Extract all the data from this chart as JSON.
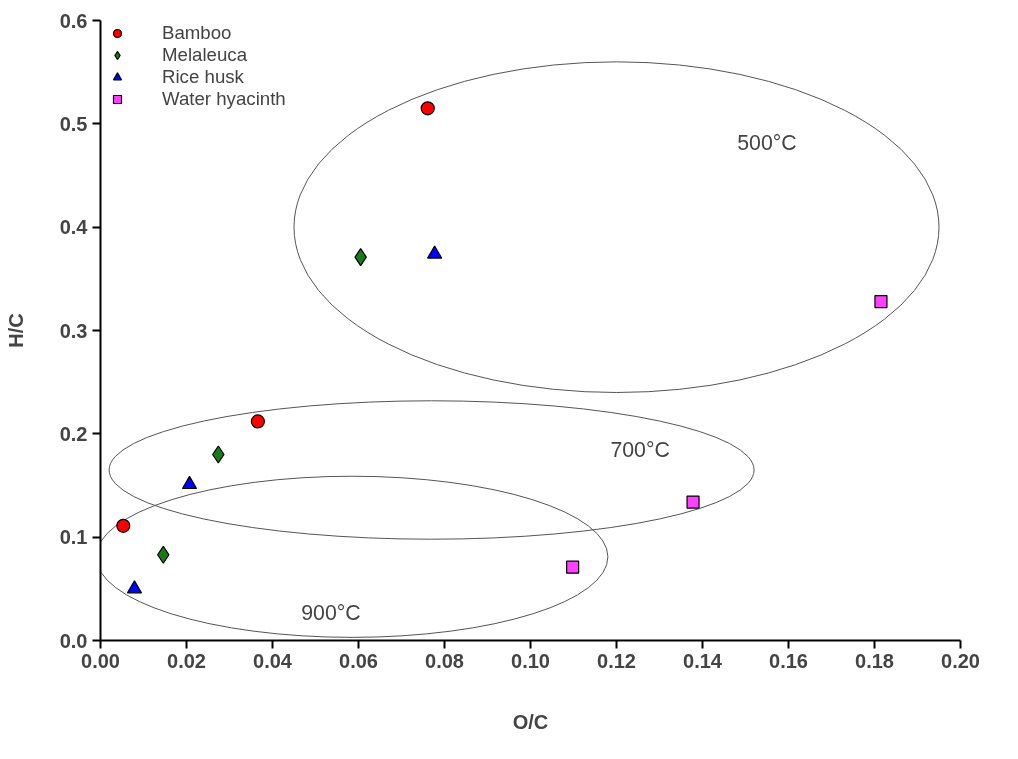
{
  "chart_data": {
    "type": "scatter",
    "xlabel": "O/C",
    "ylabel": "H/C",
    "xlim": [
      0,
      0.2
    ],
    "ylim": [
      0,
      0.6
    ],
    "xticks": [
      {
        "value": 0,
        "label": "0.00"
      },
      {
        "value": 0.02,
        "label": "0.02"
      },
      {
        "value": 0.04,
        "label": "0.04"
      },
      {
        "value": 0.06,
        "label": "0.06"
      },
      {
        "value": 0.08,
        "label": "0.08"
      },
      {
        "value": 0.1,
        "label": "0.10"
      },
      {
        "value": 0.12,
        "label": "0.12"
      },
      {
        "value": 0.14,
        "label": "0.14"
      },
      {
        "value": 0.16,
        "label": "0.16"
      },
      {
        "value": 0.18,
        "label": "0.18"
      },
      {
        "value": 0.2,
        "label": "0.20"
      }
    ],
    "yticks": [
      {
        "value": 0,
        "label": "0.0"
      },
      {
        "value": 0.1,
        "label": "0.1"
      },
      {
        "value": 0.2,
        "label": "0.2"
      },
      {
        "value": 0.3,
        "label": "0.3"
      },
      {
        "value": 0.4,
        "label": "0.4"
      },
      {
        "value": 0.5,
        "label": "0.5"
      },
      {
        "value": 0.6,
        "label": "0.6"
      }
    ],
    "grid": false,
    "legend": "top left",
    "series": [
      {
        "name": "Bamboo",
        "color": "#ff0000",
        "marker": "circle",
        "x": [
          0.0053,
          0.0366,
          0.0761
        ],
        "values": [
          0.111,
          0.212,
          0.515
        ]
      },
      {
        "name": "Melaleuca",
        "color": "#1a7a1a",
        "marker": "diamond",
        "x": [
          0.0146,
          0.0274,
          0.0605
        ],
        "values": [
          0.083,
          0.18,
          0.371
        ]
      },
      {
        "name": "Rice husk",
        "color": "#0000ff",
        "marker": "triangle",
        "x": [
          0.0079,
          0.0207,
          0.0777
        ],
        "values": [
          0.05,
          0.151,
          0.374
        ]
      },
      {
        "name": "Water hyacinth",
        "color": "#ff40ff",
        "marker": "square",
        "x": [
          0.1098,
          0.1378,
          0.1815
        ],
        "values": [
          0.071,
          0.134,
          0.328
        ]
      }
    ],
    "annotations": [
      "500°C",
      "700°C",
      "900°C"
    ]
  }
}
